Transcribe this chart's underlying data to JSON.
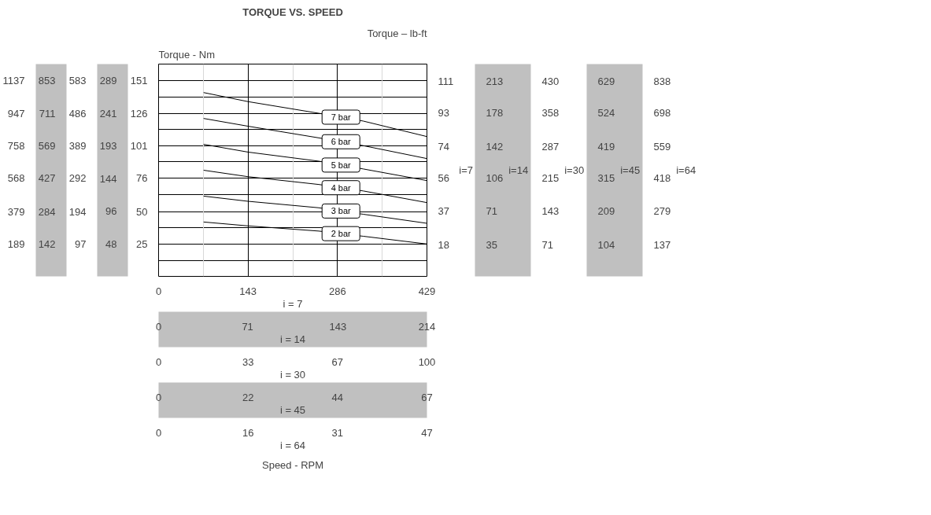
{
  "chart_data": {
    "type": "line",
    "title": "TORQUE VS. SPEED",
    "ylabel": "Torque - Nm",
    "y2label": "Torque – lb-ft",
    "xlim": [
      0,
      429
    ],
    "xticks": [
      0,
      {
        "value": 71.5,
        "label": null
      },
      143,
      {
        "value": 214.5,
        "label": null
      },
      286,
      {
        "value": 357.5,
        "label": null
      },
      429
    ],
    "x2lim": [
      0,
      214
    ],
    "x2ticks": [
      0,
      71,
      143,
      214
    ],
    "ylim": [
      0,
      164
    ],
    "yticks": [
      {
        "value": 12,
        "label": null
      },
      25,
      {
        "value": 37.5,
        "label": null
      },
      50,
      {
        "value": 63,
        "label": null
      },
      76,
      {
        "value": 88.5,
        "label": null
      },
      101,
      {
        "value": 113.5,
        "label": null
      },
      126,
      {
        "value": 138.5,
        "label": null
      },
      151
    ],
    "y3lim": [
      0,
      314
    ],
    "y3ticks": [
      48,
      96,
      144,
      193,
      241,
      289
    ],
    "y2lim": [
      0,
      121
    ],
    "y2ticks": [
      18,
      37,
      56,
      74,
      93,
      111
    ],
    "grid": true,
    "line_style": "solid",
    "series": [
      {
        "name": "7 bar",
        "color": "#000000",
        "x": [
          72,
          143,
          256,
          327,
          429
        ],
        "values": [
          142,
          135,
          126,
          120,
          108
        ]
      },
      {
        "name": "6 bar",
        "color": "#000000",
        "x": [
          72,
          143,
          256,
          327,
          429
        ],
        "values": [
          122,
          116,
          107,
          101,
          91
        ]
      },
      {
        "name": "5 bar",
        "color": "#000000",
        "x": [
          72,
          143,
          256,
          327,
          429
        ],
        "values": [
          102,
          96,
          89,
          83,
          74
        ]
      },
      {
        "name": "4 bar",
        "color": "#000000",
        "x": [
          72,
          143,
          256,
          327,
          429
        ],
        "values": [
          82,
          77,
          71,
          66,
          57
        ]
      },
      {
        "name": "3 bar",
        "color": "#000000",
        "x": [
          72,
          143,
          256,
          327,
          429
        ],
        "values": [
          62,
          58,
          53,
          48,
          41
        ]
      },
      {
        "name": "2 bar",
        "color": "#000000",
        "x": [
          72,
          143,
          256,
          327,
          429
        ],
        "values": [
          42,
          39,
          35,
          31,
          25
        ]
      }
    ],
    "annotations": [
      "583",
      "486",
      "389",
      "292",
      "194",
      "97",
      "853",
      "711",
      "569",
      "427",
      "284",
      "142",
      "1137",
      "947",
      "758",
      "568",
      "379",
      "189",
      "213",
      "178",
      "142",
      "106",
      "71",
      "35",
      "430",
      "358",
      "287",
      "215",
      "143",
      "71",
      "629",
      "524",
      "419",
      "315",
      "209",
      "104",
      "838",
      "698",
      "559",
      "418",
      "279",
      "137",
      "0",
      "33",
      "67",
      "100",
      "0",
      "22",
      "44",
      "67",
      "0",
      "16",
      "31",
      "47",
      "i = 7",
      "i = 14",
      "i = 30",
      "i = 45",
      "i = 64",
      "i=7",
      "i=14",
      "i=30",
      "i=45",
      "i=64",
      "Speed - RPM"
    ]
  }
}
